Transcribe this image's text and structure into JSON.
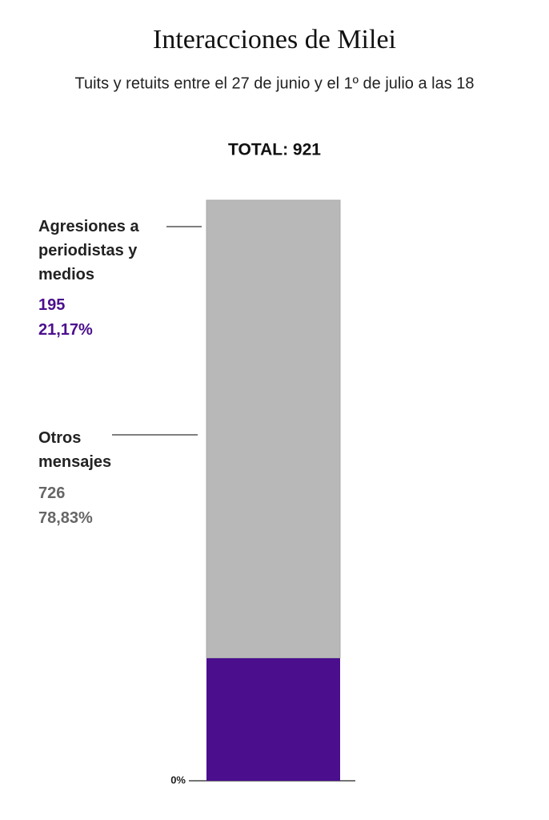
{
  "chart_data": {
    "type": "stacked_bar",
    "title": "Interacciones de Milei",
    "subtitle": "Tuits y retuits entre el 27 de junio y el 1º de julio a las 18",
    "total_label": "TOTAL: 921",
    "series": [
      {
        "name": "Agresiones a periodistas y medios",
        "color": "#4b0f8e",
        "values": [
          195
        ],
        "shares": [
          21.17
        ],
        "share_labels": [
          "21,17%"
        ]
      },
      {
        "name": "Otros mensajes",
        "color": "#b8b8b8",
        "values": [
          726
        ],
        "shares": [
          78.83
        ],
        "share_labels": [
          "78,83%"
        ]
      }
    ],
    "ylim": [
      0,
      921
    ],
    "yticks": [
      {
        "value": 0,
        "label": "0%"
      }
    ]
  }
}
